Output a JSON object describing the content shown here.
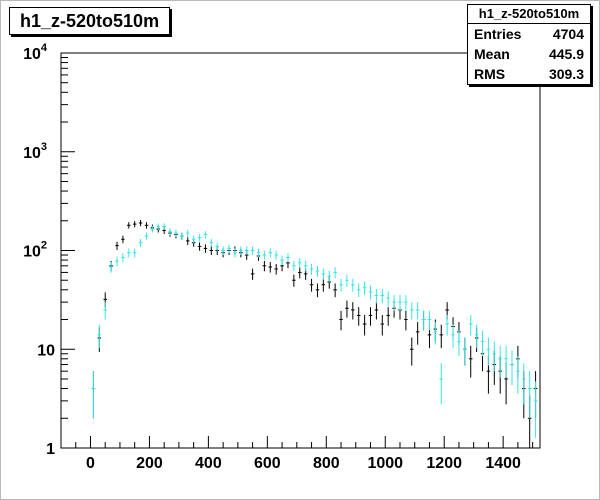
{
  "title": "h1_z-520to510m",
  "stats": {
    "name": "h1_z-520to510m",
    "entries_label": "Entries",
    "entries_value": "4704",
    "mean_label": "Mean",
    "mean_value": "445.9",
    "rms_label": "RMS",
    "rms_value": "309.3"
  },
  "colors": {
    "series_black": "#000000",
    "series_cyan": "#33e6e6",
    "frame": "#000000"
  },
  "chart_data": {
    "type": "scatter",
    "title": "h1_z-520to510m",
    "xlabel": "",
    "ylabel": "",
    "xlim": [
      -100,
      1525
    ],
    "ylim": [
      1,
      10000
    ],
    "yscale": "log",
    "grid": false,
    "xticks": [
      0,
      200,
      400,
      600,
      800,
      1000,
      1200,
      1400
    ],
    "yticks": [
      {
        "value": 1,
        "label": "1",
        "exp": ""
      },
      {
        "value": 10,
        "label": "10",
        "exp": ""
      },
      {
        "value": 100,
        "label": "10",
        "exp": "2"
      },
      {
        "value": 1000,
        "label": "10",
        "exp": "3"
      },
      {
        "value": 10000,
        "label": "10",
        "exp": "4"
      }
    ],
    "bin_width": 20,
    "series": [
      {
        "color": "#000000",
        "points": [
          [
            10,
            4
          ],
          [
            30,
            13
          ],
          [
            50,
            32
          ],
          [
            70,
            70
          ],
          [
            90,
            112
          ],
          [
            110,
            130
          ],
          [
            130,
            180
          ],
          [
            150,
            185
          ],
          [
            170,
            190
          ],
          [
            190,
            180
          ],
          [
            210,
            170
          ],
          [
            230,
            165
          ],
          [
            250,
            160
          ],
          [
            270,
            150
          ],
          [
            290,
            145
          ],
          [
            310,
            140
          ],
          [
            330,
            125
          ],
          [
            350,
            120
          ],
          [
            370,
            110
          ],
          [
            390,
            105
          ],
          [
            410,
            100
          ],
          [
            430,
            100
          ],
          [
            450,
            95
          ],
          [
            470,
            100
          ],
          [
            490,
            100
          ],
          [
            510,
            95
          ],
          [
            530,
            90
          ],
          [
            550,
            58
          ],
          [
            570,
            88
          ],
          [
            590,
            70
          ],
          [
            610,
            68
          ],
          [
            630,
            65
          ],
          [
            650,
            70
          ],
          [
            670,
            75
          ],
          [
            690,
            50
          ],
          [
            710,
            60
          ],
          [
            730,
            58
          ],
          [
            750,
            45
          ],
          [
            770,
            40
          ],
          [
            790,
            45
          ],
          [
            810,
            48
          ],
          [
            830,
            40
          ],
          [
            850,
            20
          ],
          [
            870,
            26
          ],
          [
            890,
            25
          ],
          [
            910,
            22
          ],
          [
            930,
            18
          ],
          [
            950,
            22
          ],
          [
            970,
            25
          ],
          [
            990,
            18
          ],
          [
            1010,
            22
          ],
          [
            1030,
            26
          ],
          [
            1050,
            25
          ],
          [
            1070,
            20
          ],
          [
            1090,
            10
          ],
          [
            1110,
            15
          ],
          [
            1130,
            20
          ],
          [
            1150,
            14
          ],
          [
            1170,
            16
          ],
          [
            1190,
            14
          ],
          [
            1210,
            25
          ],
          [
            1230,
            17
          ],
          [
            1250,
            15
          ],
          [
            1270,
            10
          ],
          [
            1290,
            8
          ],
          [
            1310,
            13
          ],
          [
            1330,
            9
          ],
          [
            1350,
            6
          ],
          [
            1370,
            7
          ],
          [
            1390,
            6
          ],
          [
            1410,
            5
          ],
          [
            1430,
            7
          ],
          [
            1450,
            8
          ],
          [
            1470,
            4
          ],
          [
            1490,
            2
          ],
          [
            1510,
            4
          ]
        ]
      },
      {
        "color": "#33e6e6",
        "points": [
          [
            10,
            4
          ],
          [
            30,
            14
          ],
          [
            50,
            25
          ],
          [
            70,
            68
          ],
          [
            90,
            78
          ],
          [
            110,
            85
          ],
          [
            130,
            95
          ],
          [
            150,
            95
          ],
          [
            170,
            120
          ],
          [
            190,
            140
          ],
          [
            210,
            165
          ],
          [
            230,
            175
          ],
          [
            250,
            175
          ],
          [
            270,
            155
          ],
          [
            290,
            150
          ],
          [
            310,
            140
          ],
          [
            330,
            150
          ],
          [
            350,
            130
          ],
          [
            370,
            135
          ],
          [
            390,
            145
          ],
          [
            410,
            120
          ],
          [
            430,
            110
          ],
          [
            450,
            100
          ],
          [
            470,
            105
          ],
          [
            490,
            95
          ],
          [
            510,
            100
          ],
          [
            530,
            100
          ],
          [
            550,
            100
          ],
          [
            570,
            95
          ],
          [
            590,
            90
          ],
          [
            610,
            95
          ],
          [
            630,
            90
          ],
          [
            650,
            80
          ],
          [
            670,
            85
          ],
          [
            690,
            70
          ],
          [
            710,
            75
          ],
          [
            730,
            70
          ],
          [
            750,
            65
          ],
          [
            770,
            62
          ],
          [
            790,
            58
          ],
          [
            810,
            55
          ],
          [
            830,
            60
          ],
          [
            850,
            45
          ],
          [
            870,
            50
          ],
          [
            890,
            45
          ],
          [
            910,
            40
          ],
          [
            930,
            42
          ],
          [
            950,
            38
          ],
          [
            970,
            35
          ],
          [
            990,
            35
          ],
          [
            1010,
            33
          ],
          [
            1030,
            30
          ],
          [
            1050,
            30
          ],
          [
            1070,
            30
          ],
          [
            1090,
            25
          ],
          [
            1110,
            25
          ],
          [
            1130,
            20
          ],
          [
            1150,
            20
          ],
          [
            1170,
            15
          ],
          [
            1190,
            5
          ],
          [
            1210,
            18
          ],
          [
            1230,
            14
          ],
          [
            1250,
            12
          ],
          [
            1270,
            10
          ],
          [
            1290,
            18
          ],
          [
            1310,
            14
          ],
          [
            1330,
            12
          ],
          [
            1350,
            10
          ],
          [
            1370,
            9
          ],
          [
            1390,
            8
          ],
          [
            1410,
            8
          ],
          [
            1430,
            7
          ],
          [
            1450,
            6
          ],
          [
            1470,
            5
          ],
          [
            1490,
            4
          ],
          [
            1510,
            3
          ]
        ]
      }
    ]
  }
}
